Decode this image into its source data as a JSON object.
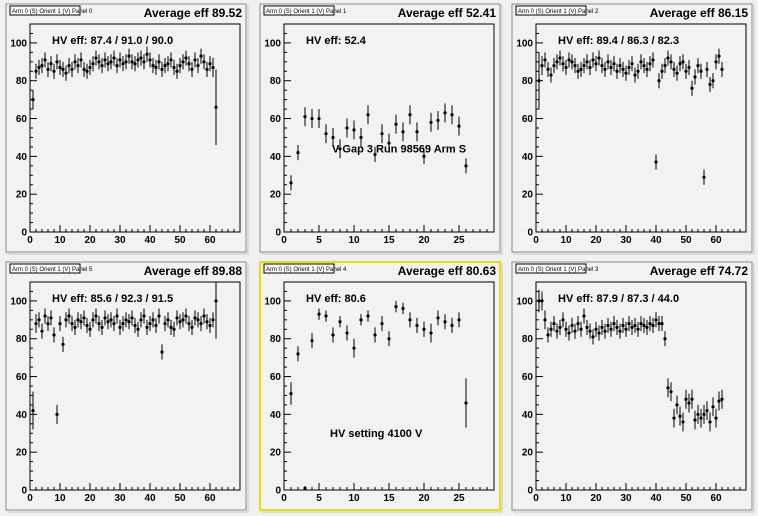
{
  "chart_data": [
    {
      "type": "scatter",
      "name_label": "Arm 0 (S) Orient 1 (V) Panel 0",
      "title": "Average eff 89.52",
      "hv_label": "HV eff:   87.4 / 91.0 / 90.0",
      "annotation": "",
      "xlim": [
        0,
        70
      ],
      "ylim": [
        0,
        110
      ],
      "xticks": [
        0,
        10,
        20,
        30,
        40,
        50,
        60
      ],
      "yticks": [
        0,
        20,
        40,
        60,
        80,
        100
      ],
      "x": [
        1,
        2,
        3,
        4,
        5,
        6,
        7,
        8,
        9,
        10,
        11,
        12,
        13,
        14,
        15,
        16,
        17,
        18,
        19,
        20,
        21,
        22,
        23,
        24,
        25,
        26,
        27,
        28,
        29,
        30,
        31,
        32,
        33,
        34,
        35,
        36,
        37,
        38,
        39,
        40,
        41,
        42,
        43,
        44,
        45,
        46,
        47,
        48,
        49,
        50,
        51,
        52,
        53,
        54,
        55,
        56,
        57,
        58,
        59,
        60,
        61,
        62
      ],
      "y": [
        70,
        85,
        87,
        88,
        91,
        86,
        89,
        85,
        90,
        87,
        86,
        84,
        88,
        86,
        90,
        88,
        91,
        86,
        85,
        87,
        89,
        92,
        90,
        88,
        91,
        89,
        90,
        92,
        88,
        91,
        89,
        90,
        93,
        90,
        89,
        91,
        92,
        90,
        94,
        91,
        88,
        87,
        90,
        86,
        88,
        89,
        91,
        87,
        85,
        88,
        90,
        92,
        89,
        86,
        91,
        88,
        93,
        90,
        86,
        89,
        87,
        66
      ],
      "err": [
        5,
        4,
        4,
        4,
        4,
        4,
        4,
        4,
        4,
        4,
        4,
        4,
        4,
        4,
        4,
        4,
        4,
        4,
        4,
        4,
        4,
        4,
        4,
        4,
        4,
        4,
        4,
        4,
        4,
        4,
        4,
        4,
        4,
        4,
        4,
        4,
        4,
        4,
        4,
        4,
        4,
        4,
        4,
        4,
        4,
        4,
        4,
        4,
        4,
        4,
        4,
        4,
        4,
        4,
        4,
        4,
        4,
        4,
        4,
        4,
        5,
        20
      ],
      "selected": false
    },
    {
      "type": "scatter",
      "name_label": "Arm 0 (S) Orient 1 (V) Panel 1",
      "title": "Average eff 52.41",
      "hv_label": "HV eff:    52.4",
      "annotation": "V Gap 3 Run 98569 Arm S",
      "xlim": [
        0,
        30
      ],
      "ylim": [
        0,
        110
      ],
      "xticks": [
        0,
        5,
        10,
        15,
        20,
        25
      ],
      "yticks": [
        0,
        20,
        40,
        60,
        80,
        100
      ],
      "x": [
        1,
        2,
        3,
        4,
        5,
        6,
        7,
        8,
        9,
        10,
        11,
        12,
        13,
        14,
        15,
        16,
        17,
        18,
        19,
        20,
        21,
        22,
        23,
        24,
        25,
        26
      ],
      "y": [
        26,
        42,
        61,
        60,
        60,
        52,
        50,
        44,
        55,
        54,
        50,
        62,
        41,
        52,
        47,
        57,
        53,
        62,
        53,
        40,
        58,
        59,
        63,
        62,
        56,
        35
      ],
      "err": [
        4,
        4,
        5,
        5,
        5,
        5,
        5,
        5,
        5,
        5,
        5,
        5,
        4,
        5,
        5,
        5,
        5,
        5,
        5,
        4,
        5,
        5,
        5,
        5,
        5,
        4
      ],
      "selected": false
    },
    {
      "type": "scatter",
      "name_label": "Arm 0 (S) Orient 1 (V) Panel 2",
      "title": "Average eff 86.15",
      "hv_label": "HV eff:   89.4 / 86.3 / 82.3",
      "annotation": "",
      "xlim": [
        0,
        70
      ],
      "ylim": [
        0,
        110
      ],
      "xticks": [
        0,
        10,
        20,
        30,
        40,
        50,
        60
      ],
      "yticks": [
        0,
        20,
        40,
        60,
        80,
        100
      ],
      "x": [
        1,
        2,
        3,
        4,
        5,
        6,
        7,
        8,
        9,
        10,
        11,
        12,
        13,
        14,
        15,
        16,
        17,
        18,
        19,
        20,
        21,
        22,
        23,
        24,
        25,
        26,
        27,
        28,
        29,
        30,
        31,
        32,
        33,
        34,
        35,
        36,
        37,
        38,
        39,
        40,
        41,
        42,
        43,
        44,
        45,
        46,
        47,
        48,
        49,
        50,
        51,
        52,
        53,
        54,
        55,
        56,
        57,
        58,
        59,
        60,
        61,
        62
      ],
      "y": [
        80,
        88,
        91,
        86,
        83,
        88,
        90,
        92,
        89,
        87,
        91,
        90,
        88,
        85,
        86,
        88,
        90,
        87,
        91,
        89,
        92,
        88,
        86,
        90,
        87,
        89,
        85,
        88,
        86,
        84,
        87,
        89,
        83,
        85,
        90,
        88,
        86,
        89,
        91,
        37,
        80,
        85,
        88,
        92,
        90,
        86,
        84,
        89,
        90,
        85,
        87,
        76,
        82,
        88,
        85,
        29,
        86,
        78,
        80,
        90,
        93,
        86
      ],
      "err": [
        15,
        5,
        4,
        4,
        4,
        4,
        4,
        4,
        4,
        4,
        4,
        4,
        4,
        4,
        4,
        4,
        4,
        4,
        4,
        4,
        4,
        4,
        4,
        4,
        4,
        4,
        4,
        4,
        4,
        4,
        4,
        4,
        4,
        4,
        4,
        4,
        4,
        4,
        4,
        4,
        4,
        4,
        4,
        4,
        4,
        4,
        4,
        4,
        4,
        4,
        4,
        4,
        4,
        4,
        4,
        4,
        4,
        4,
        4,
        4,
        4,
        4
      ],
      "selected": false
    },
    {
      "type": "scatter",
      "name_label": "Arm 0 (S) Orient 1 (V) Panel 5",
      "title": "Average eff 89.88",
      "hv_label": "HV eff:   85.6 / 92.3 / 91.5",
      "annotation": "",
      "xlim": [
        0,
        70
      ],
      "ylim": [
        0,
        110
      ],
      "xticks": [
        0,
        10,
        20,
        30,
        40,
        50,
        60
      ],
      "yticks": [
        0,
        20,
        40,
        60,
        80,
        100
      ],
      "x": [
        1,
        2,
        3,
        4,
        5,
        6,
        7,
        8,
        9,
        10,
        11,
        12,
        13,
        14,
        15,
        16,
        17,
        18,
        19,
        20,
        21,
        22,
        23,
        24,
        25,
        26,
        27,
        28,
        29,
        30,
        31,
        32,
        33,
        34,
        35,
        36,
        37,
        38,
        39,
        40,
        41,
        42,
        43,
        44,
        45,
        46,
        47,
        48,
        49,
        50,
        51,
        52,
        53,
        54,
        55,
        56,
        57,
        58,
        59,
        60,
        61,
        62
      ],
      "y": [
        42,
        88,
        90,
        84,
        92,
        88,
        91,
        82,
        40,
        88,
        77,
        90,
        92,
        88,
        86,
        90,
        89,
        91,
        87,
        85,
        90,
        92,
        88,
        86,
        91,
        89,
        90,
        88,
        92,
        86,
        88,
        90,
        89,
        91,
        87,
        85,
        90,
        92,
        86,
        88,
        90,
        87,
        92,
        73,
        88,
        90,
        86,
        85,
        91,
        89,
        90,
        92,
        88,
        86,
        91,
        90,
        88,
        92,
        89,
        87,
        90,
        100
      ],
      "err": [
        10,
        5,
        4,
        4,
        4,
        4,
        4,
        4,
        5,
        4,
        4,
        4,
        4,
        4,
        4,
        4,
        4,
        4,
        4,
        4,
        4,
        4,
        4,
        4,
        4,
        4,
        4,
        4,
        4,
        4,
        4,
        4,
        4,
        4,
        4,
        4,
        4,
        4,
        4,
        4,
        4,
        4,
        4,
        4,
        4,
        4,
        4,
        4,
        4,
        4,
        4,
        4,
        4,
        4,
        4,
        4,
        4,
        4,
        4,
        4,
        4,
        20
      ],
      "selected": false
    },
    {
      "type": "scatter",
      "name_label": "Arm 0 (S) Orient 1 (V) Panel 4",
      "title": "Average eff 80.63",
      "hv_label": "HV eff:    80.6",
      "annotation": "HV setting 4100 V",
      "xlim": [
        0,
        30
      ],
      "ylim": [
        0,
        110
      ],
      "xticks": [
        0,
        5,
        10,
        15,
        20,
        25
      ],
      "yticks": [
        0,
        20,
        40,
        60,
        80,
        100
      ],
      "x": [
        1,
        2,
        3,
        4,
        5,
        6,
        7,
        8,
        9,
        10,
        11,
        12,
        13,
        14,
        15,
        16,
        17,
        18,
        19,
        20,
        21,
        22,
        23,
        24,
        25,
        26
      ],
      "y": [
        51,
        72,
        1,
        79,
        93,
        92,
        82,
        89,
        83,
        75,
        90,
        92,
        82,
        88,
        80,
        97,
        96,
        90,
        87,
        85,
        83,
        91,
        89,
        87,
        90,
        46
      ],
      "err": [
        6,
        4,
        1,
        4,
        3,
        3,
        4,
        3,
        4,
        5,
        3,
        3,
        4,
        4,
        4,
        3,
        3,
        4,
        4,
        4,
        5,
        4,
        4,
        4,
        4,
        13
      ],
      "selected": true
    },
    {
      "type": "scatter",
      "name_label": "Arm 0 (S) Orient 1 (V) Panel 3",
      "title": "Average eff 74.72",
      "hv_label": "HV eff:   87.9 / 87.3 / 44.0",
      "annotation": "",
      "xlim": [
        0,
        70
      ],
      "ylim": [
        0,
        110
      ],
      "xticks": [
        0,
        10,
        20,
        30,
        40,
        50,
        60
      ],
      "yticks": [
        0,
        20,
        40,
        60,
        80,
        100
      ],
      "x": [
        1,
        2,
        3,
        4,
        5,
        6,
        7,
        8,
        9,
        10,
        11,
        12,
        13,
        14,
        15,
        16,
        17,
        18,
        19,
        20,
        21,
        22,
        23,
        24,
        25,
        26,
        27,
        28,
        29,
        30,
        31,
        32,
        33,
        34,
        35,
        36,
        37,
        38,
        39,
        40,
        41,
        42,
        43,
        44,
        45,
        46,
        47,
        48,
        49,
        50,
        51,
        52,
        53,
        54,
        55,
        56,
        57,
        58,
        59,
        60,
        61,
        62
      ],
      "y": [
        100,
        100,
        90,
        82,
        85,
        88,
        84,
        86,
        90,
        85,
        83,
        87,
        84,
        88,
        85,
        92,
        86,
        84,
        81,
        85,
        83,
        86,
        84,
        87,
        85,
        88,
        86,
        84,
        87,
        85,
        88,
        86,
        87,
        85,
        88,
        87,
        86,
        88,
        87,
        90,
        88,
        88,
        80,
        54,
        52,
        38,
        45,
        39,
        36,
        48,
        46,
        48,
        37,
        40,
        38,
        40,
        42,
        36,
        44,
        38,
        47,
        48
      ],
      "err": [
        6,
        5,
        5,
        4,
        4,
        4,
        4,
        4,
        4,
        4,
        4,
        4,
        4,
        4,
        4,
        4,
        4,
        4,
        4,
        4,
        4,
        4,
        4,
        4,
        4,
        4,
        4,
        4,
        4,
        4,
        4,
        4,
        4,
        4,
        4,
        4,
        4,
        4,
        4,
        4,
        4,
        4,
        4,
        5,
        5,
        5,
        5,
        5,
        5,
        5,
        5,
        5,
        5,
        5,
        5,
        5,
        5,
        5,
        5,
        5,
        5,
        5
      ],
      "selected": false
    }
  ]
}
